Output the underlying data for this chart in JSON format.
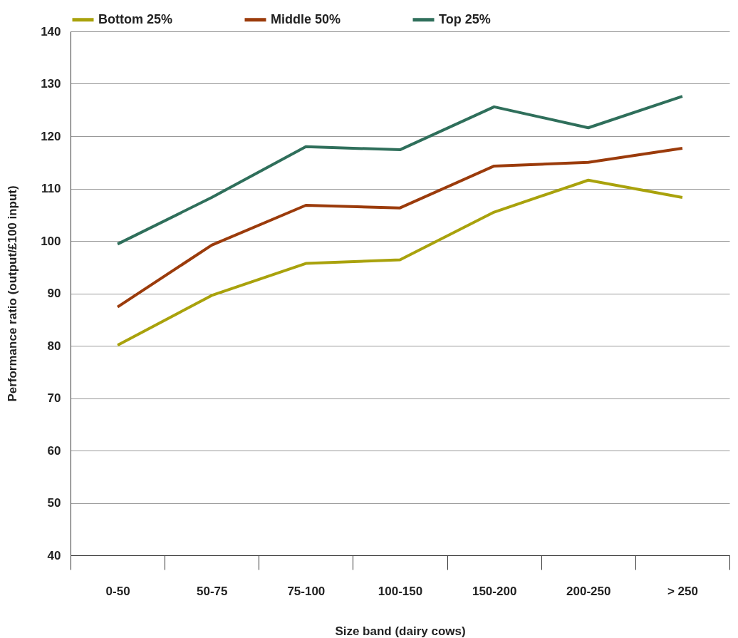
{
  "chart_data": {
    "type": "line",
    "xlabel": "Size band (dairy cows)",
    "ylabel": "Performance ratio (output/£100 input)",
    "categories": [
      "0-50",
      "50-75",
      "75-100",
      "100-150",
      "150-200",
      "200-250",
      "> 250"
    ],
    "ylim": [
      40,
      140
    ],
    "yticks": [
      40,
      50,
      60,
      70,
      80,
      90,
      100,
      110,
      120,
      130,
      140
    ],
    "grid": "y",
    "legend": "top",
    "marker": "none",
    "line_style": "solid",
    "series": [
      {
        "name": "Bottom 25%",
        "color": "#a9a20c",
        "values": [
          80.1,
          89.6,
          95.7,
          96.4,
          105.5,
          111.6,
          108.3
        ]
      },
      {
        "name": "Middle 50%",
        "color": "#9b3b0b",
        "values": [
          87.4,
          99.2,
          106.8,
          106.3,
          114.3,
          115.0,
          117.7
        ]
      },
      {
        "name": "Top 25%",
        "color": "#2f6f5b",
        "values": [
          99.4,
          108.3,
          118.0,
          117.4,
          125.6,
          121.6,
          127.6
        ]
      }
    ]
  }
}
